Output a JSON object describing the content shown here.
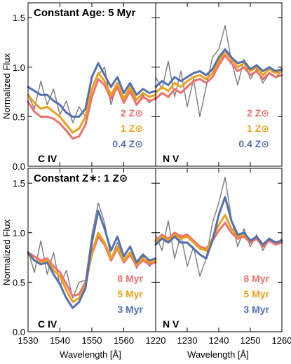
{
  "figure": {
    "ylabel": "Normalized Flux",
    "xlabel": "Wavelength [Å]"
  },
  "panels": [
    {
      "title": "Constant Age: 5 Myr",
      "ion": "C IV",
      "legend": [
        "2 Z⊙",
        "1 Z⊙",
        "0.4 Z⊙"
      ]
    },
    {
      "title": "",
      "ion": "N V",
      "legend": [
        "2 Z⊙",
        "1 Z⊙",
        "0.4 Z⊙"
      ]
    },
    {
      "title": "Constant Z∗: 1 Z⊙",
      "ion": "C IV",
      "legend": [
        "8 Myr",
        "5 Myr",
        "3 Myr"
      ]
    },
    {
      "title": "",
      "ion": "N V",
      "legend": [
        "8 Myr",
        "5 Myr",
        "3 Myr"
      ]
    }
  ],
  "colors": {
    "obs": "#7a7a7a",
    "red": "#ef6f6c",
    "orange": "#eba21b",
    "blue": "#5470b0"
  },
  "chart_data": [
    {
      "type": "line",
      "panel": "top-left",
      "title": "Constant Age: 5 Myr",
      "xlabel": "Wavelength [Å]",
      "ylabel": "Normalized Flux",
      "xlim": [
        1530,
        1570
      ],
      "ylim": [
        0,
        1.65
      ],
      "xticks": [
        1530,
        1540,
        1550,
        1560
      ],
      "yticks": [
        0.0,
        0.5,
        1.0,
        1.5
      ],
      "x": [
        1530,
        1532,
        1534,
        1536,
        1538,
        1540,
        1542,
        1544,
        1546,
        1548,
        1550,
        1552,
        1554,
        1556,
        1558,
        1560,
        1562,
        1564,
        1566,
        1568,
        1570
      ],
      "series": [
        {
          "name": "2 Z⊙",
          "color": "red",
          "values": [
            0.65,
            0.55,
            0.5,
            0.5,
            0.48,
            0.43,
            0.36,
            0.28,
            0.3,
            0.42,
            0.7,
            0.88,
            0.82,
            0.68,
            0.8,
            0.64,
            0.76,
            0.62,
            0.7,
            0.66,
            0.68
          ]
        },
        {
          "name": "1 Z⊙",
          "color": "orange",
          "values": [
            0.72,
            0.64,
            0.58,
            0.6,
            0.55,
            0.5,
            0.42,
            0.34,
            0.38,
            0.5,
            0.78,
            0.94,
            0.86,
            0.72,
            0.84,
            0.68,
            0.8,
            0.67,
            0.74,
            0.7,
            0.72
          ]
        },
        {
          "name": "0.4 Z⊙",
          "color": "blue",
          "values": [
            0.8,
            0.76,
            0.72,
            0.72,
            0.66,
            0.62,
            0.54,
            0.5,
            0.5,
            0.58,
            0.9,
            1.04,
            0.92,
            0.8,
            0.9,
            0.74,
            0.84,
            0.72,
            0.78,
            0.74,
            0.76
          ]
        },
        {
          "name": "",
          "color": "obs",
          "values": [
            0.72,
            0.58,
            0.86,
            0.62,
            0.78,
            0.52,
            0.66,
            0.44,
            0.6,
            0.5,
            0.78,
            0.92,
            1.0,
            0.62,
            0.84,
            0.7,
            0.74,
            0.62,
            0.72,
            0.64,
            0.7
          ]
        }
      ]
    },
    {
      "type": "line",
      "panel": "top-right",
      "xlim": [
        1220,
        1260
      ],
      "ylim": [
        0,
        1.65
      ],
      "xticks": [
        1220,
        1230,
        1240,
        1250,
        1260
      ],
      "x": [
        1220,
        1222,
        1224,
        1226,
        1228,
        1230,
        1232,
        1234,
        1236,
        1238,
        1240,
        1242,
        1244,
        1246,
        1248,
        1250,
        1252,
        1254,
        1256,
        1258,
        1260
      ],
      "series": [
        {
          "name": "2 Z⊙",
          "color": "red",
          "values": [
            0.68,
            0.74,
            0.7,
            0.78,
            0.74,
            0.8,
            0.86,
            0.88,
            0.84,
            0.9,
            1.02,
            1.12,
            1.04,
            0.96,
            1.0,
            0.92,
            0.96,
            0.88,
            0.94,
            0.9,
            0.92
          ]
        },
        {
          "name": "1 Z⊙",
          "color": "orange",
          "values": [
            0.74,
            0.8,
            0.76,
            0.84,
            0.8,
            0.86,
            0.9,
            0.92,
            0.88,
            0.94,
            1.06,
            1.16,
            1.08,
            1.0,
            1.04,
            0.96,
            1.0,
            0.92,
            0.98,
            0.94,
            0.96
          ]
        },
        {
          "name": "0.4 Z⊙",
          "color": "blue",
          "values": [
            0.8,
            0.86,
            0.82,
            0.9,
            0.86,
            0.9,
            0.94,
            0.96,
            0.92,
            0.98,
            1.1,
            1.18,
            1.1,
            1.04,
            1.06,
            0.98,
            1.02,
            0.96,
            1.0,
            0.96,
            0.98
          ]
        },
        {
          "name": "",
          "color": "obs",
          "values": [
            0.9,
            0.78,
            1.06,
            0.7,
            0.96,
            0.6,
            0.88,
            0.5,
            0.8,
            1.1,
            1.18,
            1.42,
            1.06,
            0.82,
            1.08,
            0.88,
            0.98,
            0.84,
            0.94,
            0.9,
            0.96
          ]
        }
      ]
    },
    {
      "type": "line",
      "panel": "bottom-left",
      "title": "Constant Z∗: 1 Z⊙",
      "xlabel": "Wavelength [Å]",
      "ylabel": "Normalized Flux",
      "xlim": [
        1530,
        1570
      ],
      "ylim": [
        0,
        1.65
      ],
      "xticks": [
        1530,
        1540,
        1550,
        1560
      ],
      "yticks": [
        0.0,
        0.5,
        1.0,
        1.5
      ],
      "x": [
        1530,
        1532,
        1534,
        1536,
        1538,
        1540,
        1542,
        1544,
        1546,
        1548,
        1550,
        1552,
        1554,
        1556,
        1558,
        1560,
        1562,
        1564,
        1566,
        1568,
        1570
      ],
      "series": [
        {
          "name": "8 Myr",
          "color": "red",
          "values": [
            0.8,
            0.76,
            0.72,
            0.74,
            0.66,
            0.6,
            0.48,
            0.36,
            0.38,
            0.5,
            0.78,
            0.96,
            0.88,
            0.72,
            0.84,
            0.7,
            0.78,
            0.66,
            0.72,
            0.68,
            0.7
          ]
        },
        {
          "name": "5 Myr",
          "color": "orange",
          "values": [
            0.78,
            0.72,
            0.7,
            0.72,
            0.62,
            0.56,
            0.42,
            0.3,
            0.34,
            0.46,
            0.8,
            1.0,
            0.9,
            0.74,
            0.86,
            0.72,
            0.8,
            0.68,
            0.74,
            0.7,
            0.72
          ]
        },
        {
          "name": "3 Myr",
          "color": "blue",
          "values": [
            0.8,
            0.72,
            0.68,
            0.7,
            0.58,
            0.48,
            0.34,
            0.24,
            0.3,
            0.44,
            0.9,
            1.22,
            1.04,
            0.82,
            0.96,
            0.76,
            0.86,
            0.7,
            0.78,
            0.72,
            0.74
          ]
        },
        {
          "name": "",
          "color": "obs",
          "values": [
            0.82,
            0.6,
            0.92,
            0.58,
            0.8,
            0.46,
            0.62,
            0.34,
            0.5,
            0.52,
            0.98,
            1.3,
            1.1,
            0.74,
            0.9,
            0.72,
            0.8,
            0.64,
            0.76,
            0.66,
            0.72
          ]
        }
      ]
    },
    {
      "type": "line",
      "panel": "bottom-right",
      "xlim": [
        1220,
        1260
      ],
      "ylim": [
        0,
        1.65
      ],
      "xticks": [
        1220,
        1230,
        1240,
        1250,
        1260
      ],
      "x": [
        1220,
        1222,
        1224,
        1226,
        1228,
        1230,
        1232,
        1234,
        1236,
        1238,
        1240,
        1242,
        1244,
        1246,
        1248,
        1250,
        1252,
        1254,
        1256,
        1258,
        1260
      ],
      "series": [
        {
          "name": "8 Myr",
          "color": "red",
          "values": [
            0.92,
            0.98,
            0.94,
            1.0,
            0.96,
            0.98,
            0.92,
            0.86,
            0.84,
            0.92,
            1.02,
            1.1,
            1.0,
            0.94,
            0.96,
            0.9,
            0.94,
            0.86,
            0.92,
            0.88,
            0.9
          ]
        },
        {
          "name": "5 Myr",
          "color": "orange",
          "values": [
            0.9,
            0.96,
            0.92,
            0.98,
            0.94,
            0.96,
            0.9,
            0.84,
            0.82,
            0.94,
            1.08,
            1.18,
            1.04,
            0.96,
            0.98,
            0.92,
            0.96,
            0.88,
            0.94,
            0.9,
            0.92
          ]
        },
        {
          "name": "3 Myr",
          "color": "blue",
          "values": [
            0.88,
            0.94,
            0.9,
            0.96,
            0.9,
            0.9,
            0.84,
            0.78,
            0.74,
            0.92,
            1.18,
            1.36,
            1.12,
            0.98,
            1.0,
            0.92,
            0.96,
            0.88,
            0.94,
            0.9,
            0.92
          ]
        },
        {
          "name": "",
          "color": "obs",
          "values": [
            0.98,
            0.82,
            1.12,
            0.74,
            0.98,
            0.66,
            0.86,
            0.56,
            0.74,
            1.1,
            1.3,
            1.56,
            1.14,
            0.86,
            1.04,
            0.86,
            0.98,
            0.82,
            0.94,
            0.88,
            0.94
          ]
        }
      ]
    }
  ]
}
